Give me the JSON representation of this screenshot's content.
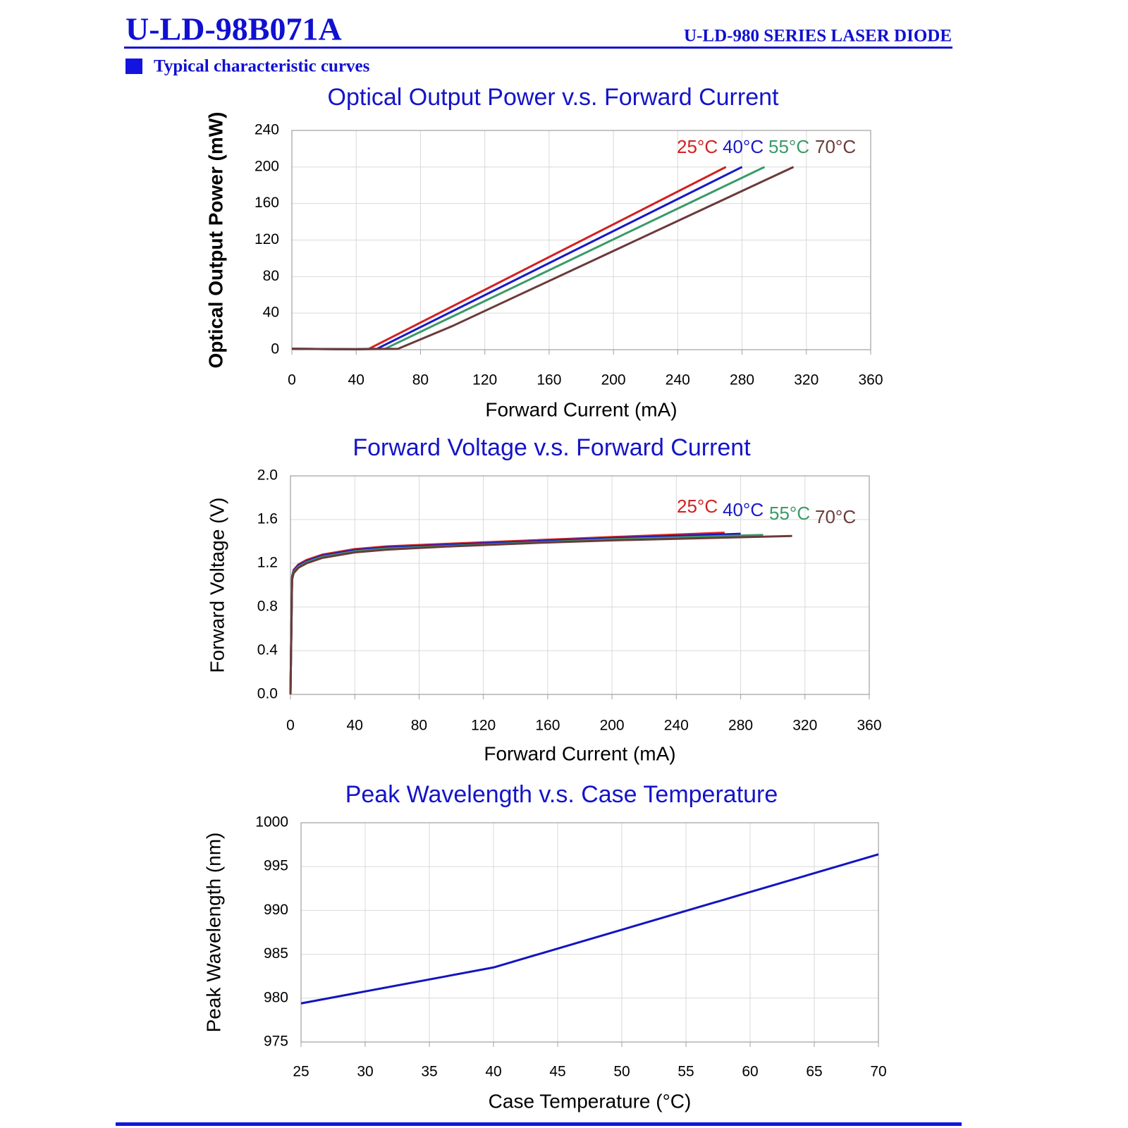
{
  "header": {
    "title": "U-LD-98B071A",
    "subtitle": "U-LD-980 SERIES LASER DIODE"
  },
  "section_title": "Typical characteristic curves",
  "chart_data": [
    {
      "type": "line",
      "title": "Optical Output Power v.s. Forward Current",
      "x_label": "Forward Current (mA)",
      "y_label": "Optical Output Power (mW)",
      "xlim": [
        0,
        360
      ],
      "xticks": [
        0,
        40,
        80,
        120,
        160,
        200,
        240,
        280,
        320,
        360
      ],
      "ylim": [
        0,
        240
      ],
      "yticks": [
        0,
        40,
        80,
        120,
        160,
        200,
        240
      ],
      "grid": true,
      "series": [
        {
          "name": "25°C",
          "color": "#d42020",
          "x": [
            0,
            40,
            48,
            270
          ],
          "values": [
            1,
            0.5,
            1,
            200
          ]
        },
        {
          "name": "40°C",
          "color": "#1818c8",
          "x": [
            0,
            40,
            53,
            280
          ],
          "values": [
            1,
            0.5,
            1,
            200
          ]
        },
        {
          "name": "55°C",
          "color": "#3a9a68",
          "x": [
            0,
            40,
            58,
            294
          ],
          "values": [
            1,
            0.5,
            1,
            200
          ]
        },
        {
          "name": "70°C",
          "color": "#6b3a3a",
          "x": [
            0,
            40,
            66,
            100,
            312
          ],
          "values": [
            1,
            0.5,
            1,
            26,
            200
          ]
        }
      ]
    },
    {
      "type": "line",
      "title": "Forward Voltage v.s. Forward Current",
      "x_label": "Forward Current (mA)",
      "y_label": "Forward Voltage (V)",
      "xlim": [
        0,
        360
      ],
      "xticks": [
        0,
        40,
        80,
        120,
        160,
        200,
        240,
        280,
        320,
        360
      ],
      "ylim": [
        0,
        2
      ],
      "yticks": [
        {
          "value": 0,
          "label": "0.0"
        },
        0.4,
        0.8,
        1.2,
        1.6,
        {
          "value": 2,
          "label": "2.0"
        }
      ],
      "grid": true,
      "series": [
        {
          "name": "25°C",
          "color": "#d42020",
          "x": [
            0,
            1,
            2,
            5,
            10,
            20,
            40,
            60,
            100,
            150,
            200,
            270
          ],
          "values": [
            0,
            1.08,
            1.14,
            1.19,
            1.23,
            1.28,
            1.33,
            1.355,
            1.38,
            1.41,
            1.44,
            1.48
          ]
        },
        {
          "name": "40°C",
          "color": "#1818c8",
          "x": [
            0,
            1,
            2,
            5,
            10,
            20,
            40,
            60,
            100,
            150,
            200,
            280
          ],
          "values": [
            0,
            1.07,
            1.13,
            1.18,
            1.22,
            1.27,
            1.32,
            1.345,
            1.37,
            1.4,
            1.43,
            1.47
          ]
        },
        {
          "name": "55°C",
          "color": "#3a9a68",
          "x": [
            0,
            1,
            2,
            5,
            10,
            20,
            40,
            60,
            100,
            150,
            200,
            294
          ],
          "values": [
            0,
            1.06,
            1.12,
            1.17,
            1.21,
            1.26,
            1.31,
            1.335,
            1.36,
            1.39,
            1.42,
            1.46
          ]
        },
        {
          "name": "70°C",
          "color": "#6b3a3a",
          "x": [
            0,
            1,
            2,
            5,
            10,
            20,
            40,
            60,
            100,
            150,
            200,
            312
          ],
          "values": [
            0,
            1.05,
            1.11,
            1.16,
            1.2,
            1.25,
            1.3,
            1.325,
            1.355,
            1.385,
            1.41,
            1.45
          ]
        }
      ]
    },
    {
      "type": "line",
      "title": "Peak Wavelength v.s. Case Temperature",
      "x_label": "Case Temperature (°C)",
      "y_label": "Peak Wavelength (nm)",
      "xlim": [
        25,
        70
      ],
      "xticks": [
        25,
        30,
        35,
        40,
        45,
        50,
        55,
        60,
        65,
        70
      ],
      "ylim": [
        975,
        1000
      ],
      "yticks": [
        975,
        980,
        985,
        990,
        995,
        1000
      ],
      "grid": true,
      "series": [
        {
          "color": "#1414c0",
          "x": [
            25,
            40,
            70
          ],
          "values": [
            979.4,
            983.5,
            996.4
          ]
        }
      ]
    }
  ]
}
